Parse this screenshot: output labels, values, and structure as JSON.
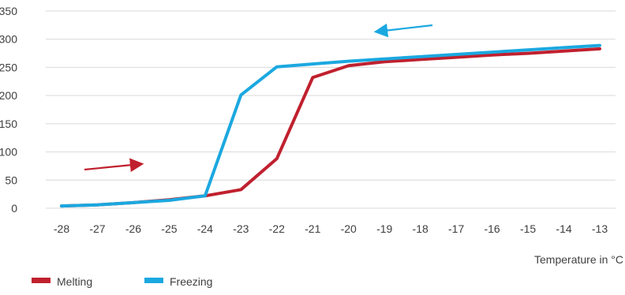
{
  "chart_data": {
    "type": "line",
    "title": "",
    "xlabel": "Temperature in °C",
    "ylabel": "",
    "x": [
      -28,
      -27,
      -26,
      -25,
      -24,
      -23,
      -22,
      -21,
      -20,
      -19,
      -18,
      -17,
      -16,
      -15,
      -14,
      -13
    ],
    "x_tick_labels": [
      "-28",
      "-27",
      "-26",
      "-25",
      "-24",
      "-23",
      "-22",
      "-21",
      "-20",
      "-19",
      "-18",
      "-17",
      "-16",
      "-15",
      "-14",
      "-13"
    ],
    "y_tick_labels": [
      "0",
      "50",
      "100",
      "150",
      "200",
      "250",
      "300",
      "350"
    ],
    "ylim": [
      0,
      350
    ],
    "grid": "horizontal",
    "legend": "bottom-left",
    "series": [
      {
        "name": "Melting",
        "color": "#c0202e",
        "values": [
          4,
          6,
          10,
          15,
          22,
          33,
          88,
          232,
          253,
          260,
          264,
          268,
          272,
          275,
          279,
          283
        ]
      },
      {
        "name": "Freezing",
        "color": "#1ba8e0",
        "values": [
          4,
          6,
          10,
          14,
          22,
          201,
          251,
          256,
          261,
          265,
          269,
          273,
          277,
          281,
          285,
          289
        ]
      }
    ],
    "annotations": [
      {
        "type": "arrow",
        "direction": "right",
        "color": "#c0202e"
      },
      {
        "type": "arrow",
        "direction": "left",
        "color": "#1ba8e0"
      }
    ]
  }
}
